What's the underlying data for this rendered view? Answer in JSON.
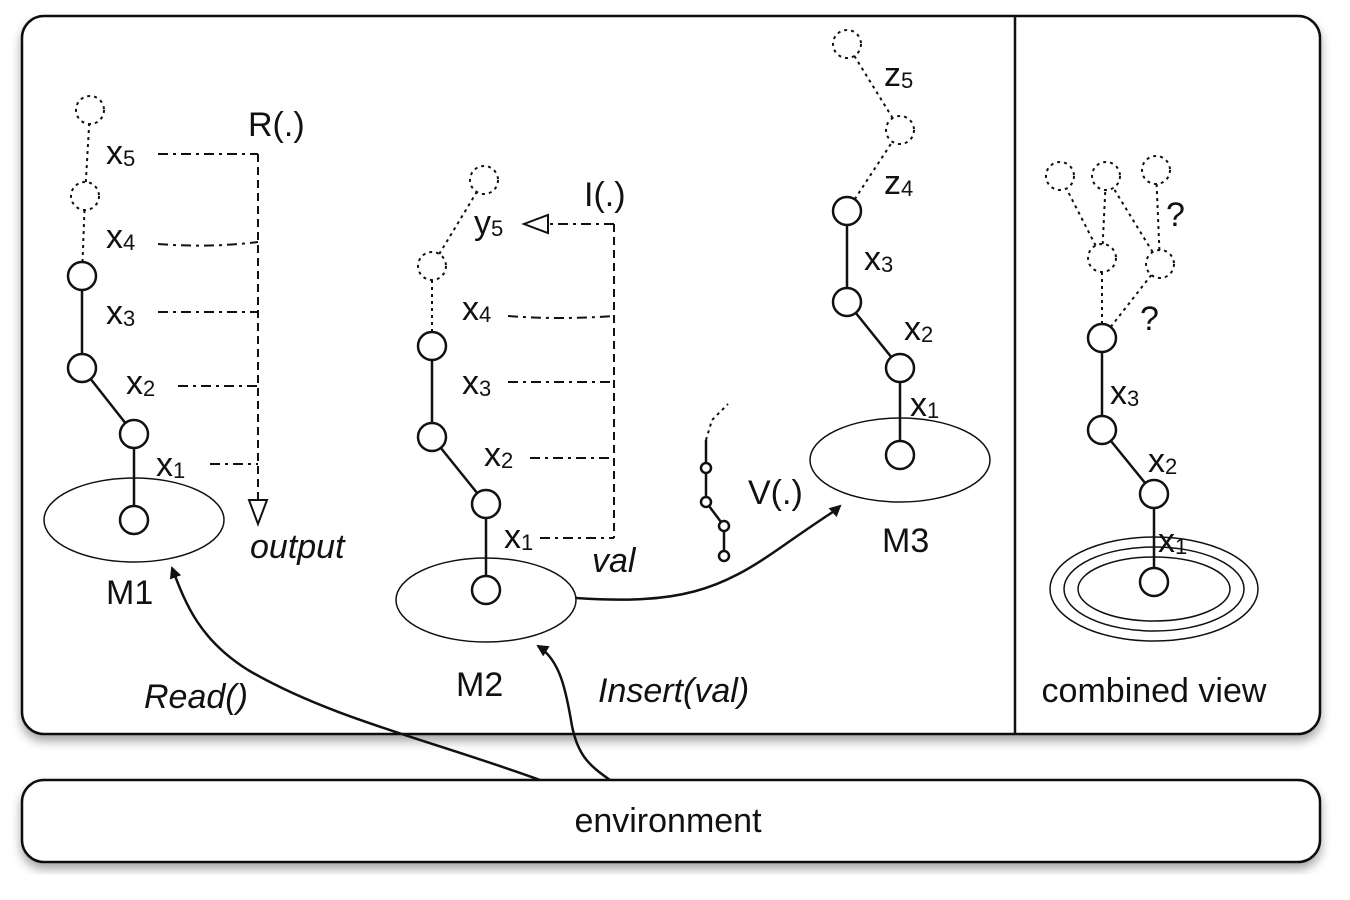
{
  "diagram": {
    "m1": {
      "name": "M1",
      "chain_labels": [
        "x",
        "x",
        "x",
        "x",
        "x"
      ],
      "chain_subs": [
        "1",
        "2",
        "3",
        "4",
        "5"
      ],
      "function_label": "R(.)",
      "result_label": "output",
      "call_label": "Read()"
    },
    "m2": {
      "name": "M2",
      "chain_labels": [
        "x",
        "x",
        "x",
        "x",
        "y"
      ],
      "chain_subs": [
        "1",
        "2",
        "3",
        "4",
        "5"
      ],
      "function_label": "I(.)",
      "value_label": "val",
      "call_label": "Insert(val)"
    },
    "m3": {
      "name": "M3",
      "chain_labels": [
        "x",
        "x",
        "x",
        "z",
        "z"
      ],
      "chain_subs": [
        "1",
        "2",
        "3",
        "4",
        "5"
      ],
      "function_label": "V(.)"
    },
    "combined": {
      "title": "combined view",
      "chain_labels": [
        "x",
        "x",
        "x"
      ],
      "chain_subs": [
        "1",
        "2",
        "3"
      ],
      "unknown_marks": [
        "?",
        "?"
      ]
    },
    "environment_label": "environment"
  }
}
